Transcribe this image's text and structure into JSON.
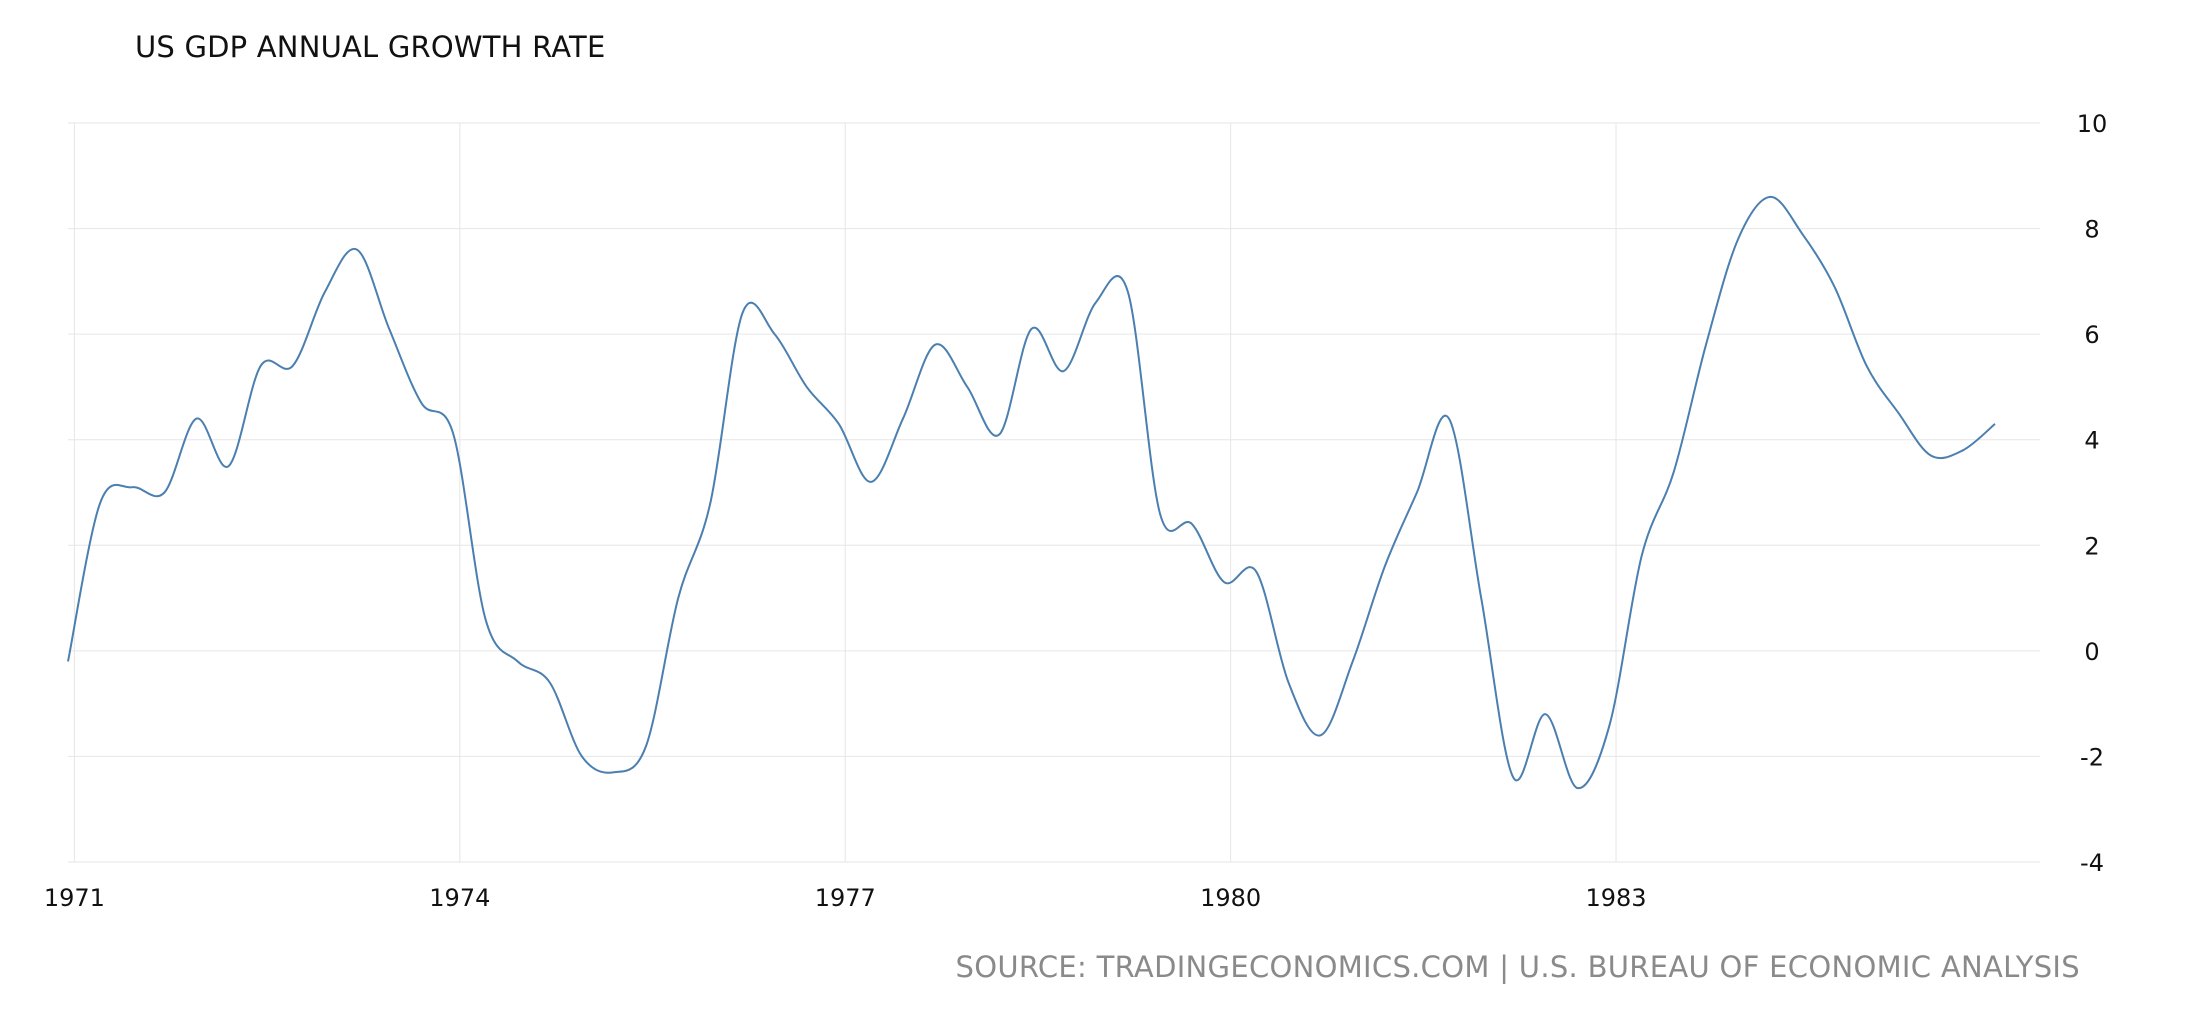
{
  "chart_data": {
    "type": "line",
    "title": "US GDP ANNUAL GROWTH RATE",
    "source": "SOURCE: TRADINGECONOMICS.COM | U.S. BUREAU OF ECONOMIC ANALYSIS",
    "xlabel": "",
    "ylabel": "",
    "y_axis_position": "right",
    "ylim": [
      -4,
      10
    ],
    "yticks": [
      "10",
      "8",
      "6",
      "4",
      "2",
      "0",
      "-2",
      "-4"
    ],
    "xlim": [
      1970.95,
      1986.3
    ],
    "xticks": [
      "1971",
      "1974",
      "1977",
      "1980",
      "1983"
    ],
    "grid": true,
    "line_color": "#4a7fb0",
    "series": [
      {
        "x": [
          1970.75,
          1971.0,
          1971.25,
          1971.5,
          1971.75,
          1972.0,
          1972.25,
          1972.5,
          1972.75,
          1973.0,
          1973.25,
          1973.5,
          1973.75,
          1974.0,
          1974.25,
          1974.5,
          1974.75,
          1975.0,
          1975.25,
          1975.5,
          1975.75,
          1976.0,
          1976.25,
          1976.5,
          1976.75,
          1977.0,
          1977.25,
          1977.5,
          1977.75,
          1978.0,
          1978.25,
          1978.5,
          1978.75,
          1979.0,
          1979.25,
          1979.5,
          1979.75,
          1980.0,
          1980.25,
          1980.5,
          1980.75,
          1981.0,
          1981.25,
          1981.5,
          1981.75,
          1982.0,
          1982.25,
          1982.5,
          1982.75,
          1983.0,
          1983.25,
          1983.5,
          1983.75,
          1984.0,
          1984.25,
          1984.5,
          1984.75,
          1985.0,
          1985.25,
          1985.5,
          1985.75
        ],
        "values": [
          -0.2,
          2.8,
          3.1,
          3.0,
          4.4,
          3.5,
          5.4,
          5.4,
          6.8,
          7.6,
          6.1,
          4.7,
          4.1,
          0.6,
          -0.2,
          -0.6,
          -2.0,
          -2.3,
          -1.8,
          1.0,
          2.8,
          6.4,
          6.0,
          5.0,
          4.3,
          3.2,
          4.4,
          5.8,
          5.0,
          4.1,
          6.1,
          5.3,
          6.6,
          6.8,
          2.6,
          2.4,
          1.3,
          1.5,
          -0.6,
          -1.6,
          -0.2,
          1.6,
          3.0,
          4.4,
          1.0,
          -2.4,
          -1.2,
          -2.6,
          -1.4,
          1.8,
          3.4,
          5.8,
          7.8,
          8.6,
          7.9,
          6.9,
          5.4,
          4.5,
          3.7,
          3.8,
          4.3
        ]
      }
    ]
  }
}
